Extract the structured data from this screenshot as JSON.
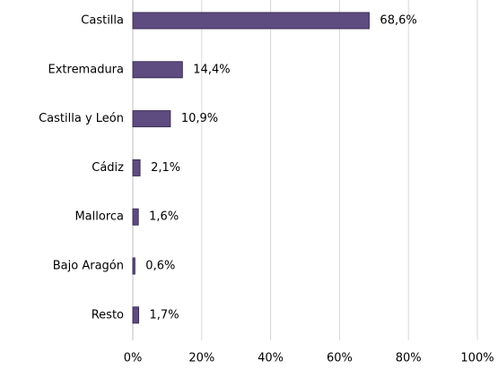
{
  "chart_data": {
    "type": "bar",
    "orientation": "horizontal",
    "categories": [
      "Castilla",
      "Extremadura",
      "Castilla y León",
      "Cádiz",
      "Mallorca",
      "Bajo Aragón",
      "Resto"
    ],
    "values": [
      68.6,
      14.4,
      10.9,
      2.1,
      1.6,
      0.6,
      1.7
    ],
    "value_labels": [
      "68,6%",
      "14,4%",
      "10,9%",
      "2,1%",
      "1,6%",
      "0,6%",
      "1,7%"
    ],
    "color": "#5e4b80",
    "xlim": [
      0,
      100
    ],
    "xticks": [
      {
        "value": 0,
        "label": "0%"
      },
      {
        "value": 20,
        "label": "20%"
      },
      {
        "value": 40,
        "label": "40%"
      },
      {
        "value": 60,
        "label": "60%"
      },
      {
        "value": 80,
        "label": "80%"
      },
      {
        "value": 100,
        "label": "100%"
      }
    ],
    "grid": true
  }
}
